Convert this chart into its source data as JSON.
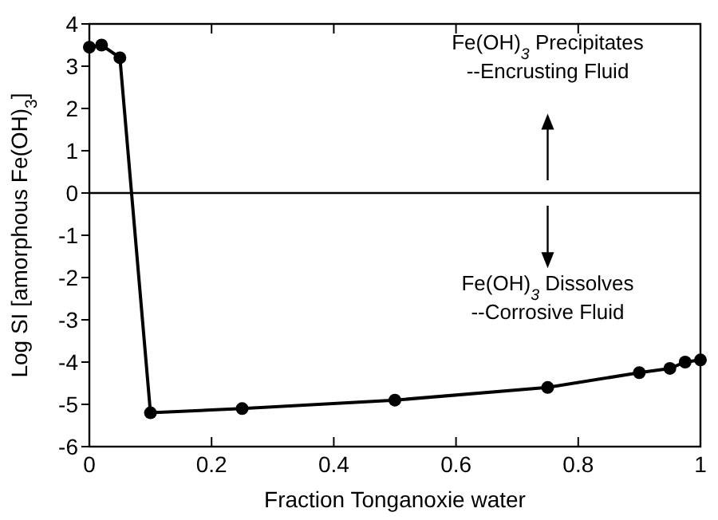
{
  "chart_data": {
    "type": "line",
    "xlabel": "Fraction Tonganoxie water",
    "ylabel": "Log SI [amorphous Fe(OH)$_{3}$]",
    "x": [
      0,
      0.02,
      0.05,
      0.1,
      0.25,
      0.5,
      0.75,
      0.9,
      0.95,
      0.975,
      1
    ],
    "series": [
      {
        "color": "#000000",
        "values": [
          3.45,
          3.5,
          3.2,
          -5.2,
          -5.1,
          -4.9,
          -4.6,
          -4.25,
          -4.15,
          -4.0,
          -3.95
        ]
      }
    ],
    "xlim": [
      0,
      1
    ],
    "xticks": [
      0,
      0.2,
      0.4,
      0.6,
      0.8,
      1
    ],
    "ylim": [
      -6,
      4
    ],
    "yticks": [
      -6,
      -5,
      -4,
      -3,
      -2,
      -1,
      0,
      1,
      2,
      3,
      4
    ],
    "marker": "circle",
    "line_style": "solid",
    "grid": false,
    "ref_lines": [
      {
        "axis": "y",
        "value": 0,
        "color": "#000000"
      }
    ],
    "annotations": [
      "Fe(OH)$_{3}$ Precipitates",
      "--Encrusting Fluid",
      "Fe(OH)$_{3}$ Dissolves",
      "--Corrosive Fluid"
    ]
  }
}
